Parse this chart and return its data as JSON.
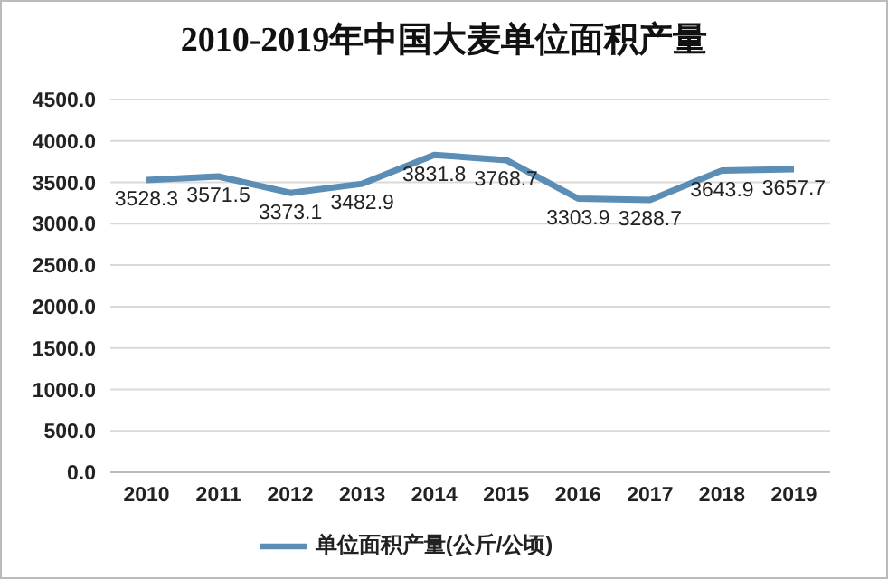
{
  "chart_data": {
    "type": "line",
    "title": "2010-2019年中国大麦单位面积产量",
    "categories": [
      "2010",
      "2011",
      "2012",
      "2013",
      "2014",
      "2015",
      "2016",
      "2017",
      "2018",
      "2019"
    ],
    "series": [
      {
        "name": "单位面积产量(公斤/公顷)",
        "color": "#5b8db5",
        "values": [
          3528.3,
          3571.5,
          3373.1,
          3482.9,
          3831.8,
          3768.7,
          3303.9,
          3288.7,
          3643.9,
          3657.7
        ]
      }
    ],
    "ylim": [
      0,
      4500
    ],
    "yticks": [
      {
        "value": 0,
        "label": "0.0"
      },
      {
        "value": 500,
        "label": "500.0"
      },
      {
        "value": 1000,
        "label": "1000.0"
      },
      {
        "value": 1500,
        "label": "1500.0"
      },
      {
        "value": 2000,
        "label": "2000.0"
      },
      {
        "value": 2500,
        "label": "2500.0"
      },
      {
        "value": 3000,
        "label": "3000.0"
      },
      {
        "value": 3500,
        "label": "3500.0"
      },
      {
        "value": 4000,
        "label": "4000.0"
      },
      {
        "value": 4500,
        "label": "4500.0"
      }
    ],
    "grid": "y",
    "legend": "bottom",
    "data_labels": true,
    "marker": "none",
    "line_style": "solid"
  }
}
